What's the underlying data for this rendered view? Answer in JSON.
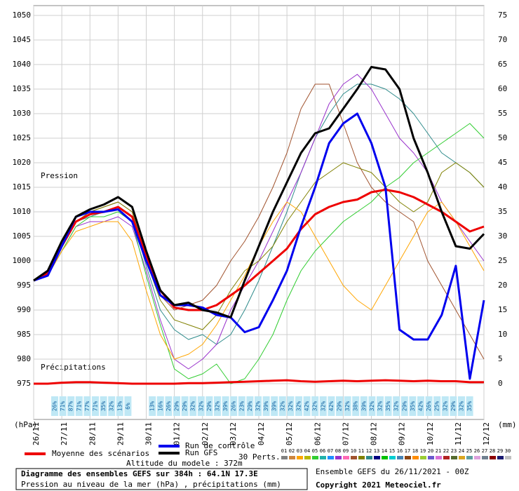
{
  "chart_data": {
    "type": "line",
    "title": "Diagramme des ensembles GEFS sur 384h : 64.1N 17.3E",
    "subtitle": "Pression au niveau de la mer (hPa) , précipitations (mm)",
    "pressure_label": "Pression",
    "precip_label": "Précipitations",
    "y_unit": "(hPa)",
    "y2_unit": "(mm)",
    "altitude": "Altitude du modele : 372m",
    "run_info": "Ensemble GEFS du 26/11/2021 - 00Z",
    "copyright": "Copyright 2021 Meteociel.fr",
    "perts_label": "30 Perts.",
    "grid": true,
    "xlim": [
      0,
      384
    ],
    "xticks": [
      {
        "value": 0,
        "label": "26/11"
      },
      {
        "value": 24,
        "label": "27/11"
      },
      {
        "value": 48,
        "label": "28/11"
      },
      {
        "value": 72,
        "label": "29/11"
      },
      {
        "value": 96,
        "label": "30/11"
      },
      {
        "value": 120,
        "label": "01/12"
      },
      {
        "value": 144,
        "label": "02/12"
      },
      {
        "value": 168,
        "label": "03/12"
      },
      {
        "value": 192,
        "label": "04/12"
      },
      {
        "value": 216,
        "label": "05/12"
      },
      {
        "value": 240,
        "label": "06/12"
      },
      {
        "value": 264,
        "label": "07/12"
      },
      {
        "value": 288,
        "label": "08/12"
      },
      {
        "value": 312,
        "label": "09/12"
      },
      {
        "value": 336,
        "label": "10/12"
      },
      {
        "value": 360,
        "label": "11/12"
      },
      {
        "value": 384,
        "label": "12/12"
      }
    ],
    "ylim": [
      975,
      1050
    ],
    "yticks": [
      975,
      980,
      985,
      990,
      995,
      1000,
      1005,
      1010,
      1015,
      1020,
      1025,
      1030,
      1035,
      1040,
      1045,
      1050
    ],
    "y2lim": [
      0,
      75
    ],
    "y2ticks": [
      0,
      5,
      10,
      15,
      20,
      25,
      30,
      35,
      40,
      45,
      50,
      55,
      60,
      65,
      70,
      75
    ],
    "x": [
      0,
      12,
      24,
      36,
      48,
      60,
      72,
      84,
      96,
      108,
      120,
      132,
      144,
      156,
      168,
      180,
      192,
      204,
      216,
      228,
      240,
      252,
      264,
      276,
      288,
      300,
      312,
      324,
      336,
      348,
      360,
      372,
      384
    ],
    "perturbations": [
      {
        "color": "#a0522d",
        "values": [
          996,
          998,
          1004,
          1009,
          1010,
          1011,
          1012,
          1010,
          1001,
          993,
          990,
          991,
          992,
          995,
          1000,
          1004,
          1009,
          1015,
          1022,
          1031,
          1036,
          1036,
          1028,
          1020,
          1015,
          1012,
          1010,
          1008,
          1000,
          995,
          990,
          985,
          980
        ]
      },
      {
        "color": "#2e8b8b",
        "values": [
          996,
          997,
          1003,
          1008,
          1009,
          1010,
          1011,
          1009,
          999,
          990,
          986,
          984,
          985,
          983,
          985,
          990,
          996,
          1003,
          1010,
          1018,
          1025,
          1030,
          1034,
          1036,
          1036,
          1035,
          1033,
          1030,
          1026,
          1022,
          1020,
          1018,
          1015
        ]
      },
      {
        "color": "#9932cc",
        "values": [
          996,
          997,
          1002,
          1007,
          1008,
          1008,
          1009,
          1007,
          998,
          988,
          980,
          978,
          980,
          983,
          990,
          995,
          1000,
          1006,
          1012,
          1018,
          1025,
          1032,
          1036,
          1038,
          1035,
          1030,
          1025,
          1022,
          1018,
          1012,
          1008,
          1004,
          1000
        ]
      },
      {
        "color": "#808000",
        "values": [
          996,
          998,
          1003,
          1008,
          1010,
          1011,
          1012,
          1010,
          1000,
          992,
          988,
          987,
          986,
          989,
          994,
          998,
          1000,
          1003,
          1008,
          1012,
          1016,
          1018,
          1020,
          1019,
          1018,
          1015,
          1012,
          1010,
          1012,
          1018,
          1020,
          1018,
          1015
        ]
      },
      {
        "color": "#32cd32",
        "values": [
          996,
          997,
          1002,
          1007,
          1009,
          1009,
          1010,
          1008,
          997,
          987,
          978,
          976,
          977,
          979,
          975,
          976,
          980,
          985,
          992,
          998,
          1002,
          1005,
          1008,
          1010,
          1012,
          1015,
          1017,
          1020,
          1022,
          1024,
          1026,
          1028,
          1025
        ]
      },
      {
        "color": "#ffa500",
        "values": [
          996,
          997,
          1002,
          1006,
          1007,
          1008,
          1008,
          1004,
          994,
          985,
          980,
          981,
          983,
          987,
          992,
          997,
          1003,
          1008,
          1012,
          1010,
          1005,
          1000,
          995,
          992,
          990,
          995,
          1000,
          1005,
          1010,
          1012,
          1008,
          1003,
          998
        ]
      }
    ],
    "series": [
      {
        "name": "Moyenne des scénarios",
        "color": "#ee0000",
        "values": [
          996,
          997.5,
          1003,
          1008,
          1009.5,
          1010,
          1011,
          1009,
          1001,
          994,
          990.5,
          990,
          990,
          991,
          993,
          995,
          997.5,
          1000,
          1002.5,
          1006.5,
          1009.5,
          1011,
          1012,
          1012.5,
          1014,
          1014.5,
          1014,
          1013,
          1011.5,
          1010,
          1008,
          1006,
          1007
        ]
      },
      {
        "name": "Run de contrôle",
        "color": "#0000ee",
        "values": [
          996,
          997,
          1003,
          1009,
          1010,
          1010,
          1010.5,
          1008,
          1000,
          993,
          991,
          991,
          990.5,
          989,
          988.5,
          985.5,
          986.5,
          992,
          998,
          1007,
          1015,
          1024,
          1028,
          1030,
          1024,
          1015,
          986,
          984,
          984,
          989,
          999,
          976,
          992
        ]
      },
      {
        "name": "Run GFS",
        "color": "#000000",
        "values": [
          996,
          998,
          1004,
          1009,
          1010.5,
          1011.5,
          1013,
          1011,
          1002,
          994,
          991,
          991.5,
          990,
          989.5,
          988.5,
          996,
          1003,
          1010,
          1016,
          1022,
          1026,
          1027,
          1031,
          1035,
          1039.5,
          1039,
          1035,
          1025,
          1018,
          1010,
          1003,
          1002.5,
          1005.5
        ]
      }
    ],
    "precip_mean": {
      "color": "#ee0000",
      "axis": "y2",
      "values": [
        0,
        0,
        0.2,
        0.3,
        0.3,
        0.2,
        0.1,
        0,
        0,
        0,
        0,
        0.1,
        0.1,
        0.2,
        0.3,
        0.4,
        0.5,
        0.6,
        0.7,
        0.5,
        0.4,
        0.5,
        0.6,
        0.5,
        0.6,
        0.7,
        0.6,
        0.5,
        0.6,
        0.5,
        0.5,
        0.3,
        0.3
      ]
    },
    "precip_probability": {
      "values": [
        26,
        71,
        87,
        71,
        77,
        71,
        35,
        32,
        13,
        6,
        null,
        null,
        13,
        16,
        26,
        29,
        29,
        32,
        32,
        29,
        32,
        39,
        26,
        23,
        29,
        32,
        39,
        39,
        32,
        32,
        32,
        42,
        32,
        32,
        42,
        29,
        32,
        38,
        39,
        32,
        32,
        35,
        32,
        29,
        35,
        42,
        26,
        25,
        32,
        29,
        32,
        35
      ],
      "value_labels": [
        "26%",
        "71%",
        "87%",
        "71%",
        "77%",
        "71%",
        "35%",
        "32%",
        "13%",
        "6%",
        null,
        null,
        "13%",
        "16%",
        "26%",
        "29%",
        "29%",
        "32%",
        "32%",
        "29%",
        "32%",
        "39%",
        "26%",
        "23%",
        "29%",
        "32%",
        "39%",
        "39%",
        "32%",
        "32%",
        "32%",
        "42%",
        "32%",
        "32%",
        "42%",
        "29%",
        "32%",
        "38%",
        "39%",
        "32%",
        "32%",
        "35%",
        "32%",
        "29%",
        "35%",
        "42%",
        "26%",
        "25%",
        "32%",
        "29%",
        "32%",
        "35%"
      ]
    },
    "swatches": [
      {
        "label": "01",
        "color": "#808080"
      },
      {
        "label": "02",
        "color": "#cd853f"
      },
      {
        "label": "03",
        "color": "#ffa500"
      },
      {
        "label": "04",
        "color": "#b8b800"
      },
      {
        "label": "05",
        "color": "#32cd32"
      },
      {
        "label": "06",
        "color": "#20b2aa"
      },
      {
        "label": "07",
        "color": "#1e90ff"
      },
      {
        "label": "08",
        "color": "#9932cc"
      },
      {
        "label": "09",
        "color": "#ff69b4"
      },
      {
        "label": "10",
        "color": "#a0522d"
      },
      {
        "label": "11",
        "color": "#808000"
      },
      {
        "label": "12",
        "color": "#2e8b8b"
      },
      {
        "label": "13",
        "color": "#000080"
      },
      {
        "label": "14",
        "color": "#00c000"
      },
      {
        "label": "15",
        "color": "#00ced1"
      },
      {
        "label": "16",
        "color": "#4682b4"
      },
      {
        "label": "17",
        "color": "#8b4513"
      },
      {
        "label": "18",
        "color": "#ff8c00"
      },
      {
        "label": "19",
        "color": "#9acd32"
      },
      {
        "label": "20",
        "color": "#6a5acd"
      },
      {
        "label": "21",
        "color": "#da70d6"
      },
      {
        "label": "22",
        "color": "#b22222"
      },
      {
        "label": "23",
        "color": "#556b2f"
      },
      {
        "label": "24",
        "color": "#daa520"
      },
      {
        "label": "25",
        "color": "#5f9ea0"
      },
      {
        "label": "26",
        "color": "#dda0dd"
      },
      {
        "label": "27",
        "color": "#708090"
      },
      {
        "label": "28",
        "color": "#8b0000"
      },
      {
        "label": "29",
        "color": "#191970"
      },
      {
        "label": "30",
        "color": "#c0c0c0"
      }
    ]
  }
}
